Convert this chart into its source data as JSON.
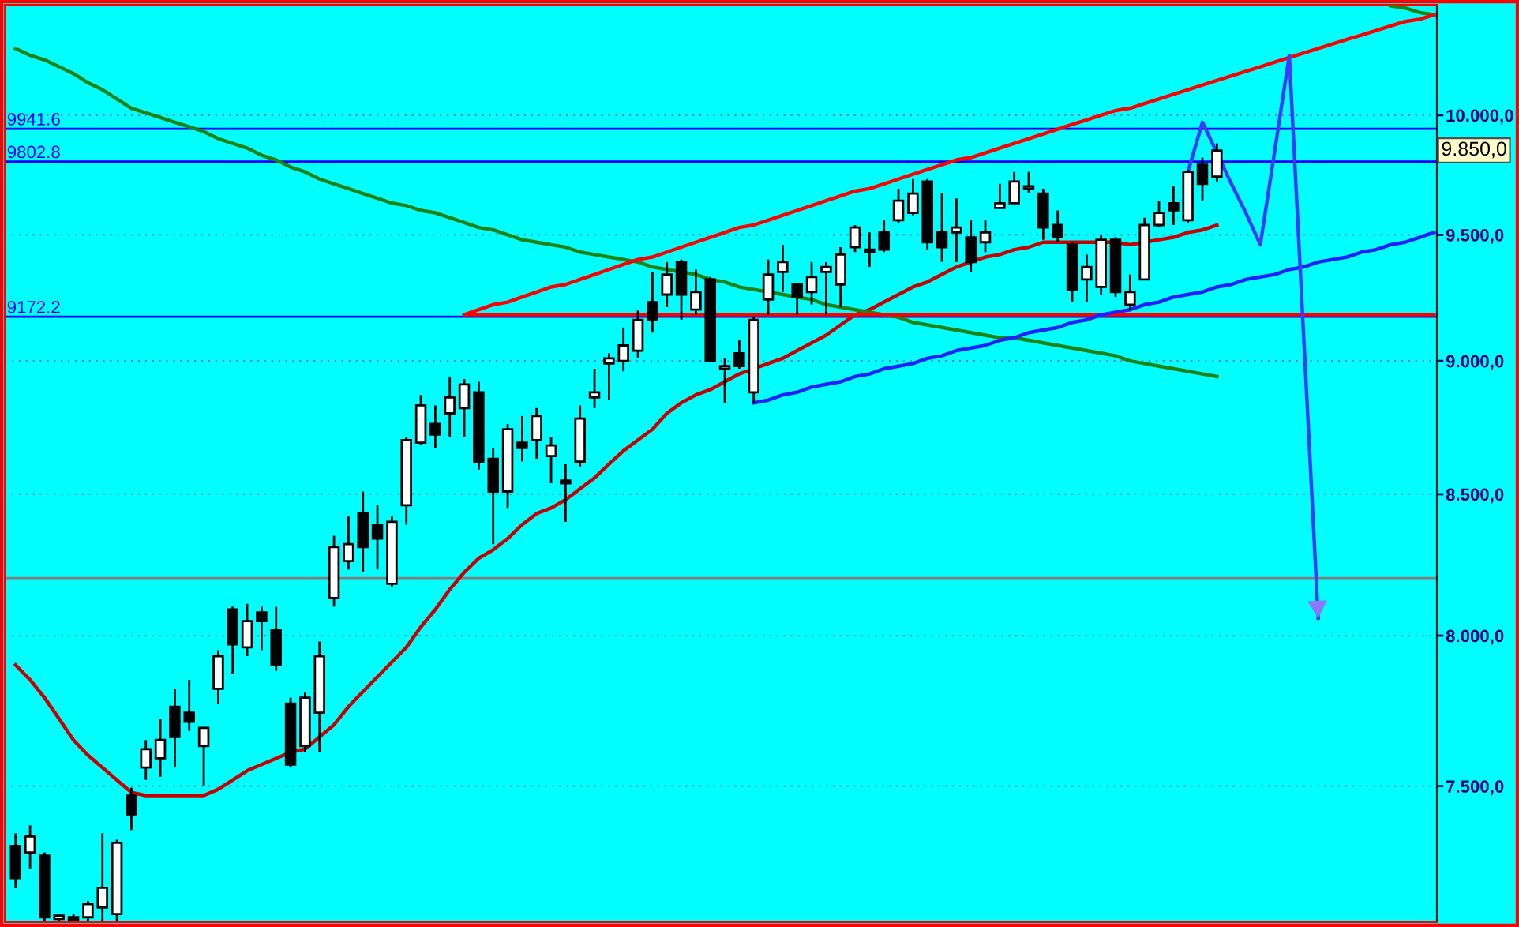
{
  "chart_data": {
    "type": "candlestick",
    "log": true,
    "grid": "y",
    "tick_labels": "y",
    "categories": [
      null,
      null,
      null,
      null,
      null,
      null,
      null,
      null,
      null,
      null,
      null,
      null,
      null,
      null,
      null,
      null,
      null,
      null,
      null,
      null,
      null,
      null,
      null,
      null,
      null,
      null,
      null,
      null,
      null,
      null,
      null,
      null,
      null,
      null,
      null,
      null,
      null,
      null,
      null,
      null,
      null,
      null,
      null,
      null,
      null,
      null,
      null,
      null,
      null,
      null,
      null,
      null,
      null,
      null,
      null,
      null,
      null,
      null,
      null,
      null,
      null,
      null,
      null,
      null,
      null,
      null,
      null,
      null,
      null,
      null,
      null,
      null,
      null,
      null,
      null,
      null,
      null,
      null,
      null,
      null,
      null,
      null,
      null,
      null,
      null,
      null,
      null,
      null,
      null,
      null,
      null,
      null,
      null,
      null,
      null,
      null,
      null,
      null,
      null
    ],
    "ylim": [
      7075,
      10485
    ],
    "yticks": [
      {
        "value": 7500,
        "label": "7.500,0"
      },
      {
        "value": 8000,
        "label": "8.000,0"
      },
      {
        "value": 8500,
        "label": "8.500,0"
      },
      {
        "value": 9000,
        "label": "9.000,0"
      },
      {
        "value": 9500,
        "label": "9.500,0"
      },
      {
        "value": 10000,
        "label": "10.000,0"
      }
    ],
    "ohlc": [
      [
        7310,
        7350,
        7180,
        7210
      ],
      [
        7290,
        7375,
        7240,
        7340
      ],
      [
        7280,
        7290,
        7080,
        7090
      ],
      [
        7085,
        7100,
        7080,
        7095
      ],
      [
        7090,
        7100,
        7078,
        7082
      ],
      [
        7090,
        7140,
        7080,
        7130
      ],
      [
        7120,
        7350,
        7080,
        7180
      ],
      [
        7100,
        7330,
        7080,
        7320
      ],
      [
        7470,
        7495,
        7360,
        7410
      ],
      [
        7560,
        7650,
        7520,
        7620
      ],
      [
        7590,
        7720,
        7530,
        7650
      ],
      [
        7760,
        7820,
        7560,
        7660
      ],
      [
        7740,
        7850,
        7680,
        7710
      ],
      [
        7630,
        7690,
        7500,
        7690
      ],
      [
        7820,
        7950,
        7770,
        7930
      ],
      [
        8090,
        8100,
        7870,
        7970
      ],
      [
        7960,
        8110,
        7930,
        8050
      ],
      [
        8080,
        8100,
        7950,
        8050
      ],
      [
        8020,
        8100,
        7880,
        7900
      ],
      [
        7770,
        7790,
        7560,
        7570
      ],
      [
        7630,
        7810,
        7610,
        7790
      ],
      [
        7740,
        7980,
        7610,
        7930
      ],
      [
        8130,
        8350,
        8100,
        8310
      ],
      [
        8260,
        8420,
        8230,
        8320
      ],
      [
        8430,
        8510,
        8220,
        8310
      ],
      [
        8390,
        8460,
        8230,
        8340
      ],
      [
        8180,
        8420,
        8170,
        8400
      ],
      [
        8460,
        8710,
        8390,
        8700
      ],
      [
        8690,
        8870,
        8680,
        8830
      ],
      [
        8760,
        8830,
        8670,
        8720
      ],
      [
        8800,
        8940,
        8710,
        8860
      ],
      [
        8820,
        8930,
        8710,
        8910
      ],
      [
        8880,
        8920,
        8590,
        8620
      ],
      [
        8630,
        8670,
        8320,
        8510
      ],
      [
        8510,
        8760,
        8450,
        8740
      ],
      [
        8690,
        8790,
        8620,
        8670
      ],
      [
        8700,
        8820,
        8630,
        8790
      ],
      [
        8640,
        8710,
        8540,
        8680
      ],
      [
        8550,
        8610,
        8400,
        8540
      ],
      [
        8620,
        8830,
        8600,
        8780
      ],
      [
        8860,
        8970,
        8820,
        8880
      ],
      [
        8990,
        9030,
        8850,
        9010
      ],
      [
        9000,
        9130,
        8960,
        9060
      ],
      [
        9040,
        9200,
        9010,
        9160
      ],
      [
        9230,
        9350,
        9110,
        9160
      ],
      [
        9260,
        9390,
        9210,
        9340
      ],
      [
        9390,
        9400,
        9160,
        9260
      ],
      [
        9200,
        9360,
        9180,
        9270
      ],
      [
        9320,
        9330,
        9000,
        9000
      ],
      [
        8970,
        9010,
        8840,
        8980
      ],
      [
        9030,
        9080,
        8970,
        8980
      ],
      [
        8880,
        9170,
        8840,
        9160
      ],
      [
        9240,
        9400,
        9180,
        9340
      ],
      [
        9350,
        9460,
        9270,
        9390
      ],
      [
        9300,
        9300,
        9180,
        9250
      ],
      [
        9270,
        9390,
        9220,
        9330
      ],
      [
        9350,
        9390,
        9180,
        9370
      ],
      [
        9300,
        9450,
        9210,
        9420
      ],
      [
        9450,
        9540,
        9430,
        9530
      ],
      [
        9440,
        9510,
        9370,
        9430
      ],
      [
        9510,
        9560,
        9430,
        9440
      ],
      [
        9560,
        9690,
        9550,
        9640
      ],
      [
        9590,
        9730,
        9580,
        9670
      ],
      [
        9720,
        9730,
        9440,
        9470
      ],
      [
        9510,
        9670,
        9390,
        9450
      ],
      [
        9510,
        9650,
        9390,
        9530
      ],
      [
        9490,
        9560,
        9350,
        9390
      ],
      [
        9470,
        9560,
        9430,
        9510
      ],
      [
        9610,
        9710,
        9610,
        9630
      ],
      [
        9630,
        9760,
        9630,
        9720
      ],
      [
        9690,
        9760,
        9670,
        9700
      ],
      [
        9670,
        9690,
        9480,
        9530
      ],
      [
        9540,
        9600,
        9470,
        9490
      ],
      [
        9460,
        9470,
        9230,
        9280
      ],
      [
        9320,
        9420,
        9230,
        9370
      ],
      [
        9290,
        9500,
        9260,
        9480
      ],
      [
        9480,
        9490,
        9250,
        9270
      ],
      [
        9220,
        9340,
        9200,
        9270
      ],
      [
        9320,
        9570,
        9320,
        9540
      ],
      [
        9540,
        9640,
        9530,
        9590
      ],
      [
        9630,
        9700,
        9540,
        9600
      ],
      [
        9560,
        9770,
        9550,
        9760
      ],
      [
        9790,
        9820,
        9640,
        9710
      ],
      [
        9740,
        9880,
        9720,
        9850
      ],
      null,
      null,
      null,
      null,
      null,
      null,
      null,
      null,
      null,
      null,
      null,
      null,
      null,
      null,
      null
    ],
    "series": [
      {
        "type": "line",
        "color": "#c80000",
        "values": [
          7900,
          7850,
          7790,
          7720,
          7650,
          7600,
          7560,
          7520,
          7480,
          7470,
          7470,
          7470,
          7470,
          7470,
          7490,
          7520,
          7550,
          7570,
          7590,
          7610,
          7620,
          7660,
          7700,
          7760,
          7810,
          7860,
          7910,
          7960,
          8030,
          8090,
          8160,
          8220,
          8270,
          8300,
          8340,
          8390,
          8430,
          8450,
          8480,
          8520,
          8560,
          8610,
          8660,
          8700,
          8740,
          8800,
          8840,
          8870,
          8890,
          8920,
          8950,
          8970,
          8990,
          9010,
          9040,
          9070,
          9100,
          9140,
          9180,
          9200,
          9230,
          9260,
          9290,
          9310,
          9340,
          9370,
          9390,
          9410,
          9420,
          9440,
          9450,
          9470,
          9470,
          9470,
          9470,
          9470,
          9470,
          9460,
          9470,
          9480,
          9490,
          9510,
          9520,
          9540,
          null,
          null,
          null,
          null,
          null,
          null,
          null,
          null,
          null,
          null,
          null,
          null,
          null,
          null,
          null
        ]
      },
      {
        "type": "line",
        "color": "#1e8214",
        "values": [
          10290,
          10260,
          10240,
          10210,
          10180,
          10140,
          10110,
          10070,
          10030,
          10010,
          9990,
          9970,
          9950,
          9930,
          9900,
          9880,
          9860,
          9830,
          9810,
          9780,
          9760,
          9730,
          9710,
          9690,
          9670,
          9650,
          9630,
          9620,
          9600,
          9590,
          9570,
          9550,
          9530,
          9520,
          9500,
          9480,
          9470,
          9460,
          9450,
          9430,
          9420,
          9410,
          9400,
          9390,
          9370,
          9360,
          9350,
          9340,
          9320,
          9310,
          9290,
          9280,
          9270,
          9260,
          9250,
          9240,
          9220,
          9210,
          9200,
          9190,
          9180,
          9170,
          9150,
          9140,
          9130,
          9120,
          9110,
          9100,
          9090,
          9090,
          9080,
          9070,
          9060,
          9050,
          9040,
          9030,
          9020,
          9000,
          8990,
          8980,
          8970,
          8960,
          8950,
          8940,
          null,
          null,
          null,
          null,
          null,
          null,
          null,
          null,
          null,
          null,
          null,
          null,
          null,
          null,
          null
        ]
      },
      {
        "type": "line",
        "color": "#1e8214",
        "values": [
          null,
          null,
          null,
          null,
          null,
          null,
          null,
          null,
          null,
          null,
          null,
          null,
          null,
          null,
          null,
          null,
          null,
          null,
          null,
          null,
          null,
          null,
          null,
          null,
          null,
          null,
          null,
          null,
          null,
          null,
          null,
          null,
          null,
          null,
          null,
          null,
          null,
          null,
          null,
          null,
          null,
          null,
          null,
          null,
          null,
          null,
          null,
          null,
          null,
          null,
          null,
          null,
          null,
          null,
          null,
          null,
          null,
          null,
          null,
          null,
          null,
          null,
          null,
          null,
          null,
          null,
          null,
          null,
          null,
          null,
          null,
          null,
          null,
          null,
          null,
          null,
          null,
          null,
          null,
          null,
          null,
          null,
          null,
          null,
          null,
          null,
          null,
          null,
          null,
          null,
          null,
          null,
          null,
          null,
          null,
          10480,
          10470,
          10450,
          10440
        ]
      },
      {
        "type": "line",
        "color": "#ff0000",
        "values": [
          null,
          null,
          null,
          null,
          null,
          null,
          null,
          null,
          null,
          null,
          null,
          null,
          null,
          null,
          null,
          null,
          null,
          null,
          null,
          null,
          null,
          null,
          null,
          null,
          null,
          null,
          null,
          null,
          null,
          null,
          null,
          9180,
          9200,
          9220,
          9230,
          9250,
          9270,
          9290,
          9300,
          9320,
          9340,
          9360,
          9380,
          9400,
          9410,
          9430,
          9450,
          9470,
          9490,
          9510,
          9530,
          9540,
          9560,
          9580,
          9600,
          9620,
          9640,
          9660,
          9680,
          9690,
          9710,
          9730,
          9750,
          9770,
          9790,
          9810,
          9820,
          9840,
          9860,
          9880,
          9900,
          9920,
          9940,
          9960,
          9980,
          10000,
          10020,
          10030,
          10050,
          10070,
          10090,
          10110,
          10130,
          10150,
          10170,
          10190,
          10210,
          10230,
          10250,
          10270,
          10290,
          10310,
          10330,
          10350,
          10370,
          10390,
          10410,
          10420,
          10440
        ]
      },
      {
        "type": "line",
        "color": "#ff0000",
        "values": [
          null,
          null,
          null,
          null,
          null,
          null,
          null,
          null,
          null,
          null,
          null,
          null,
          null,
          null,
          null,
          null,
          null,
          null,
          null,
          null,
          null,
          null,
          null,
          null,
          null,
          null,
          null,
          null,
          null,
          null,
          null,
          9180,
          9180,
          9180,
          9180,
          9180,
          9180,
          9180,
          9180,
          9180,
          9180,
          9180,
          9180,
          9180,
          9180,
          9180,
          9180,
          9180,
          9180,
          9180,
          9180,
          9180,
          9180,
          9180,
          9180,
          9180,
          9180,
          9180,
          9180,
          9180,
          9180,
          9180,
          9180,
          9180,
          9180,
          9180,
          9180,
          9180,
          9180,
          9180,
          9180,
          9180,
          9180,
          9180,
          9180,
          9180,
          9180,
          9180,
          9180,
          9180,
          9180,
          9180,
          9180,
          9180,
          9180,
          9180,
          9180,
          9180,
          9180,
          9180,
          9180,
          9180,
          9180,
          9180,
          9180,
          9180,
          9180,
          9180,
          9180
        ]
      },
      {
        "type": "line",
        "color": "#2020ff",
        "values": [
          null,
          null,
          null,
          null,
          null,
          null,
          null,
          null,
          null,
          null,
          null,
          null,
          null,
          null,
          null,
          null,
          null,
          null,
          null,
          null,
          null,
          null,
          null,
          null,
          null,
          null,
          null,
          null,
          null,
          null,
          null,
          null,
          null,
          null,
          null,
          null,
          null,
          null,
          null,
          null,
          null,
          null,
          null,
          null,
          null,
          null,
          null,
          null,
          null,
          null,
          null,
          8840,
          8850,
          8870,
          8880,
          8900,
          8910,
          8920,
          8940,
          8950,
          8970,
          8980,
          8990,
          9010,
          9020,
          9040,
          9050,
          9060,
          9080,
          9090,
          9110,
          9120,
          9130,
          9150,
          9160,
          9180,
          9190,
          9200,
          9220,
          9230,
          9250,
          9260,
          9270,
          9290,
          9300,
          9320,
          9330,
          9340,
          9360,
          9370,
          9390,
          9400,
          9410,
          9430,
          9440,
          9460,
          9470,
          9490,
          9510
        ]
      },
      {
        "type": "line",
        "color": "#3c3cff",
        "values": [
          null,
          null,
          null,
          null,
          null,
          null,
          null,
          null,
          null,
          null,
          null,
          null,
          null,
          null,
          null,
          null,
          null,
          null,
          null,
          null,
          null,
          null,
          null,
          null,
          null,
          null,
          null,
          null,
          null,
          null,
          null,
          null,
          null,
          null,
          null,
          null,
          null,
          null,
          null,
          null,
          null,
          null,
          null,
          null,
          null,
          null,
          null,
          null,
          null,
          null,
          null,
          null,
          null,
          null,
          null,
          null,
          null,
          null,
          null,
          null,
          null,
          null,
          null,
          null,
          null,
          null,
          null,
          null,
          null,
          null,
          null,
          null,
          null,
          null,
          null,
          null,
          null,
          null,
          null,
          null,
          null,
          9760,
          9970,
          9840,
          9710,
          9590,
          9460,
          9850,
          10260,
          9090,
          8060,
          null,
          null,
          null,
          null,
          null,
          null,
          null,
          null
        ]
      }
    ],
    "ref_lines": [
      {
        "axis": "y",
        "value": 9941.6,
        "label": "9941.6",
        "color": "#0000ff"
      },
      {
        "axis": "y",
        "value": 9802.8,
        "label": "9802.8",
        "color": "#0000ff"
      },
      {
        "axis": "y",
        "value": 9172.2,
        "label": "9172.2",
        "color": "#0000ff"
      },
      {
        "axis": "y",
        "value": 8200,
        "label": null,
        "color": "#808080"
      }
    ],
    "annotations": [
      "9.850,0"
    ]
  }
}
